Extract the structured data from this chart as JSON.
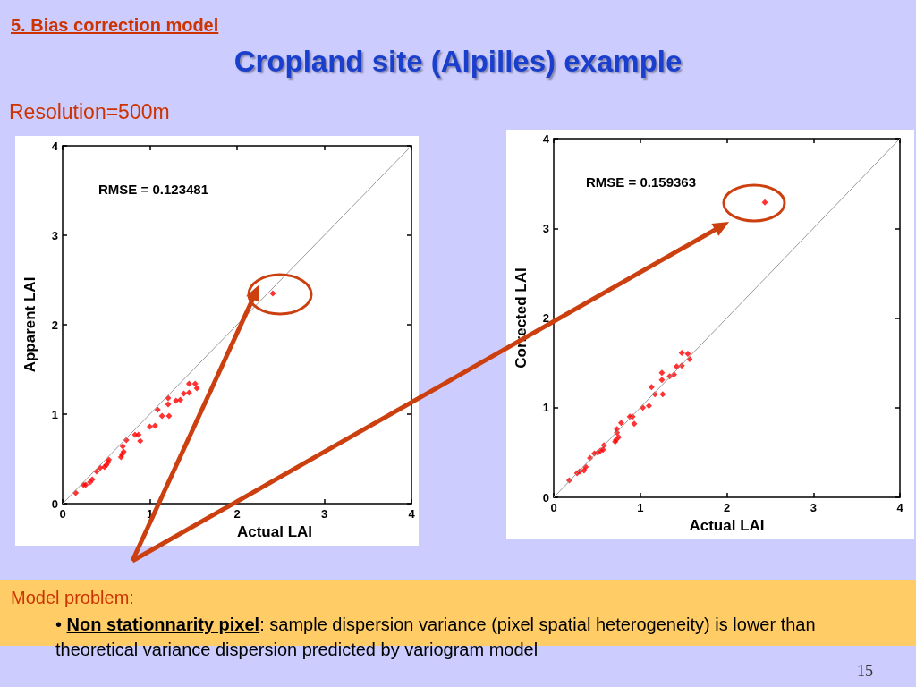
{
  "chart_data": [
    {
      "type": "scatter",
      "title": "Cropland site (Alpilles) example",
      "subtitle": "Resolution=500m",
      "xlabel": "Actual LAI",
      "ylabel": "Apparent LAI",
      "xlim": [
        0,
        4
      ],
      "ylim": [
        0,
        4
      ],
      "xticks": [
        0,
        1,
        2,
        3,
        4
      ],
      "yticks": [
        0,
        1,
        2,
        3,
        4
      ],
      "grid": false,
      "marker": "diamond",
      "annotations": [
        "5. Bias correction model",
        "RMSE = 0.123481",
        "Model problem:",
        "Non stationnarity pixel",
        ": sample dispersion variance (pixel spatial heterogeneity) is lower than theoretical variance dispersion predicted by variogram model",
        "15",
        "•"
      ],
      "series": [
        {
          "type": "line",
          "color": "#999999",
          "marker": "none",
          "x": [
            0,
            4
          ],
          "values": [
            0,
            4
          ]
        },
        {
          "type": "scatter",
          "color": "#ff0000",
          "x": [
            0.15,
            0.24,
            0.265,
            0.315,
            0.34,
            0.39,
            0.43,
            0.48,
            0.5,
            0.52,
            0.53,
            0.67,
            0.68,
            0.7,
            0.69,
            0.73,
            0.83,
            0.87,
            0.89,
            1.0,
            1.06,
            1.09,
            1.14,
            1.21,
            1.21,
            1.22,
            1.3,
            1.35,
            1.39,
            1.45,
            1.45,
            1.52,
            1.54,
            2.41
          ],
          "values": [
            0.12,
            0.21,
            0.21,
            0.24,
            0.27,
            0.36,
            0.4,
            0.41,
            0.43,
            0.46,
            0.49,
            0.52,
            0.55,
            0.58,
            0.64,
            0.71,
            0.77,
            0.77,
            0.7,
            0.86,
            0.87,
            1.05,
            0.98,
            1.18,
            1.11,
            0.98,
            1.15,
            1.16,
            1.23,
            1.24,
            1.34,
            1.34,
            1.29,
            2.35
          ]
        }
      ]
    },
    {
      "type": "scatter",
      "xlabel": "Actual LAI",
      "ylabel": "Corrected LAI",
      "xlim": [
        0,
        4
      ],
      "ylim": [
        0,
        4
      ],
      "xticks": [
        0,
        1,
        2,
        3,
        4
      ],
      "yticks": [
        0,
        1,
        2,
        3,
        4
      ],
      "grid": false,
      "marker": "diamond",
      "annotations": [
        "RMSE = 0.159363"
      ],
      "series": [
        {
          "type": "line",
          "color": "#999999",
          "marker": "none",
          "x": [
            0,
            4
          ],
          "values": [
            0,
            4
          ]
        },
        {
          "type": "scatter",
          "color": "#ff0000",
          "x": [
            0.18,
            0.27,
            0.3,
            0.35,
            0.37,
            0.42,
            0.47,
            0.51,
            0.54,
            0.57,
            0.58,
            0.71,
            0.72,
            0.75,
            0.73,
            0.73,
            0.78,
            0.88,
            0.91,
            0.93,
            1.03,
            1.1,
            1.13,
            1.17,
            1.25,
            1.25,
            1.26,
            1.34,
            1.39,
            1.42,
            1.48,
            1.48,
            1.55,
            1.57,
            2.44
          ],
          "values": [
            0.19,
            0.27,
            0.29,
            0.3,
            0.34,
            0.44,
            0.49,
            0.5,
            0.52,
            0.53,
            0.58,
            0.62,
            0.64,
            0.67,
            0.72,
            0.76,
            0.83,
            0.9,
            0.9,
            0.82,
            1.0,
            1.02,
            1.23,
            1.15,
            1.39,
            1.31,
            1.15,
            1.35,
            1.37,
            1.46,
            1.47,
            1.61,
            1.6,
            1.54,
            3.29
          ]
        }
      ]
    }
  ]
}
